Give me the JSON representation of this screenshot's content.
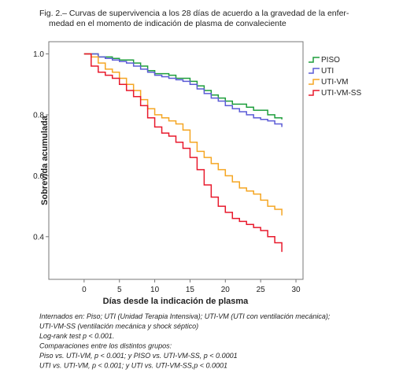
{
  "chart_data": {
    "type": "line",
    "title": [
      "Fig. 2.– Curvas de supervivencia a los 28 días de acuerdo a la gravedad de la enfer-",
      "medad en el momento de indicación de plasma de convaleciente"
    ],
    "x_label": "Días desde la indicación de plasma",
    "y_label": "Sobrevida acumulada",
    "step": true,
    "x": [
      0,
      1,
      2,
      3,
      4,
      5,
      6,
      7,
      8,
      9,
      10,
      11,
      12,
      13,
      14,
      15,
      16,
      17,
      18,
      19,
      20,
      21,
      22,
      23,
      24,
      25,
      26,
      27,
      28
    ],
    "series": [
      {
        "name": "PISO",
        "color": "#1e9e3c",
        "values": [
          1.0,
          1.0,
          0.99,
          0.99,
          0.985,
          0.98,
          0.98,
          0.97,
          0.96,
          0.945,
          0.935,
          0.935,
          0.93,
          0.92,
          0.92,
          0.91,
          0.895,
          0.88,
          0.865,
          0.855,
          0.845,
          0.835,
          0.835,
          0.825,
          0.815,
          0.815,
          0.8,
          0.79,
          0.785
        ]
      },
      {
        "name": "UTI",
        "color": "#5b5bd6",
        "values": [
          1.0,
          1.0,
          0.99,
          0.985,
          0.98,
          0.975,
          0.97,
          0.96,
          0.95,
          0.94,
          0.93,
          0.925,
          0.92,
          0.915,
          0.91,
          0.9,
          0.885,
          0.87,
          0.855,
          0.845,
          0.83,
          0.82,
          0.81,
          0.8,
          0.79,
          0.785,
          0.78,
          0.77,
          0.76
        ]
      },
      {
        "name": "UTI-VM",
        "color": "#f5a623",
        "values": [
          1.0,
          0.99,
          0.97,
          0.95,
          0.94,
          0.92,
          0.9,
          0.88,
          0.85,
          0.82,
          0.8,
          0.79,
          0.78,
          0.77,
          0.75,
          0.71,
          0.68,
          0.66,
          0.64,
          0.62,
          0.6,
          0.58,
          0.56,
          0.55,
          0.54,
          0.52,
          0.5,
          0.49,
          0.47
        ]
      },
      {
        "name": "UTI-VM-SS",
        "color": "#e8192c",
        "values": [
          1.0,
          0.96,
          0.94,
          0.93,
          0.92,
          0.9,
          0.88,
          0.86,
          0.83,
          0.79,
          0.76,
          0.74,
          0.73,
          0.71,
          0.69,
          0.66,
          0.62,
          0.57,
          0.53,
          0.5,
          0.48,
          0.46,
          0.45,
          0.44,
          0.43,
          0.42,
          0.4,
          0.38,
          0.35
        ]
      }
    ],
    "xlim": [
      -5,
      31
    ],
    "ylim": [
      0.26,
      1.04
    ],
    "xticks": [
      0,
      5,
      10,
      15,
      20,
      25,
      30
    ],
    "yticks": [
      0.4,
      0.6,
      0.8,
      {
        "value": 1,
        "label": "1.0"
      }
    ],
    "legend": "right",
    "notes": [
      "Internados en: Piso; UTI (Unidad Terapia Intensiva); UTI-VM (UTI con ventilación mecánica);",
      "UTI-VM-SS (ventilación mecánica y shock séptico)",
      "Log-rank test p < 0.001.",
      "Comparaciones entre los distintos grupos:",
      "Piso vs. UTI-VM, p < 0.001; y PISO vs. UTI-VM-SS, p < 0.0001",
      "UTI vs. UTI-VM, p < 0.001; y UTI vs. UTI-VM-SS,p < 0.0001"
    ]
  }
}
